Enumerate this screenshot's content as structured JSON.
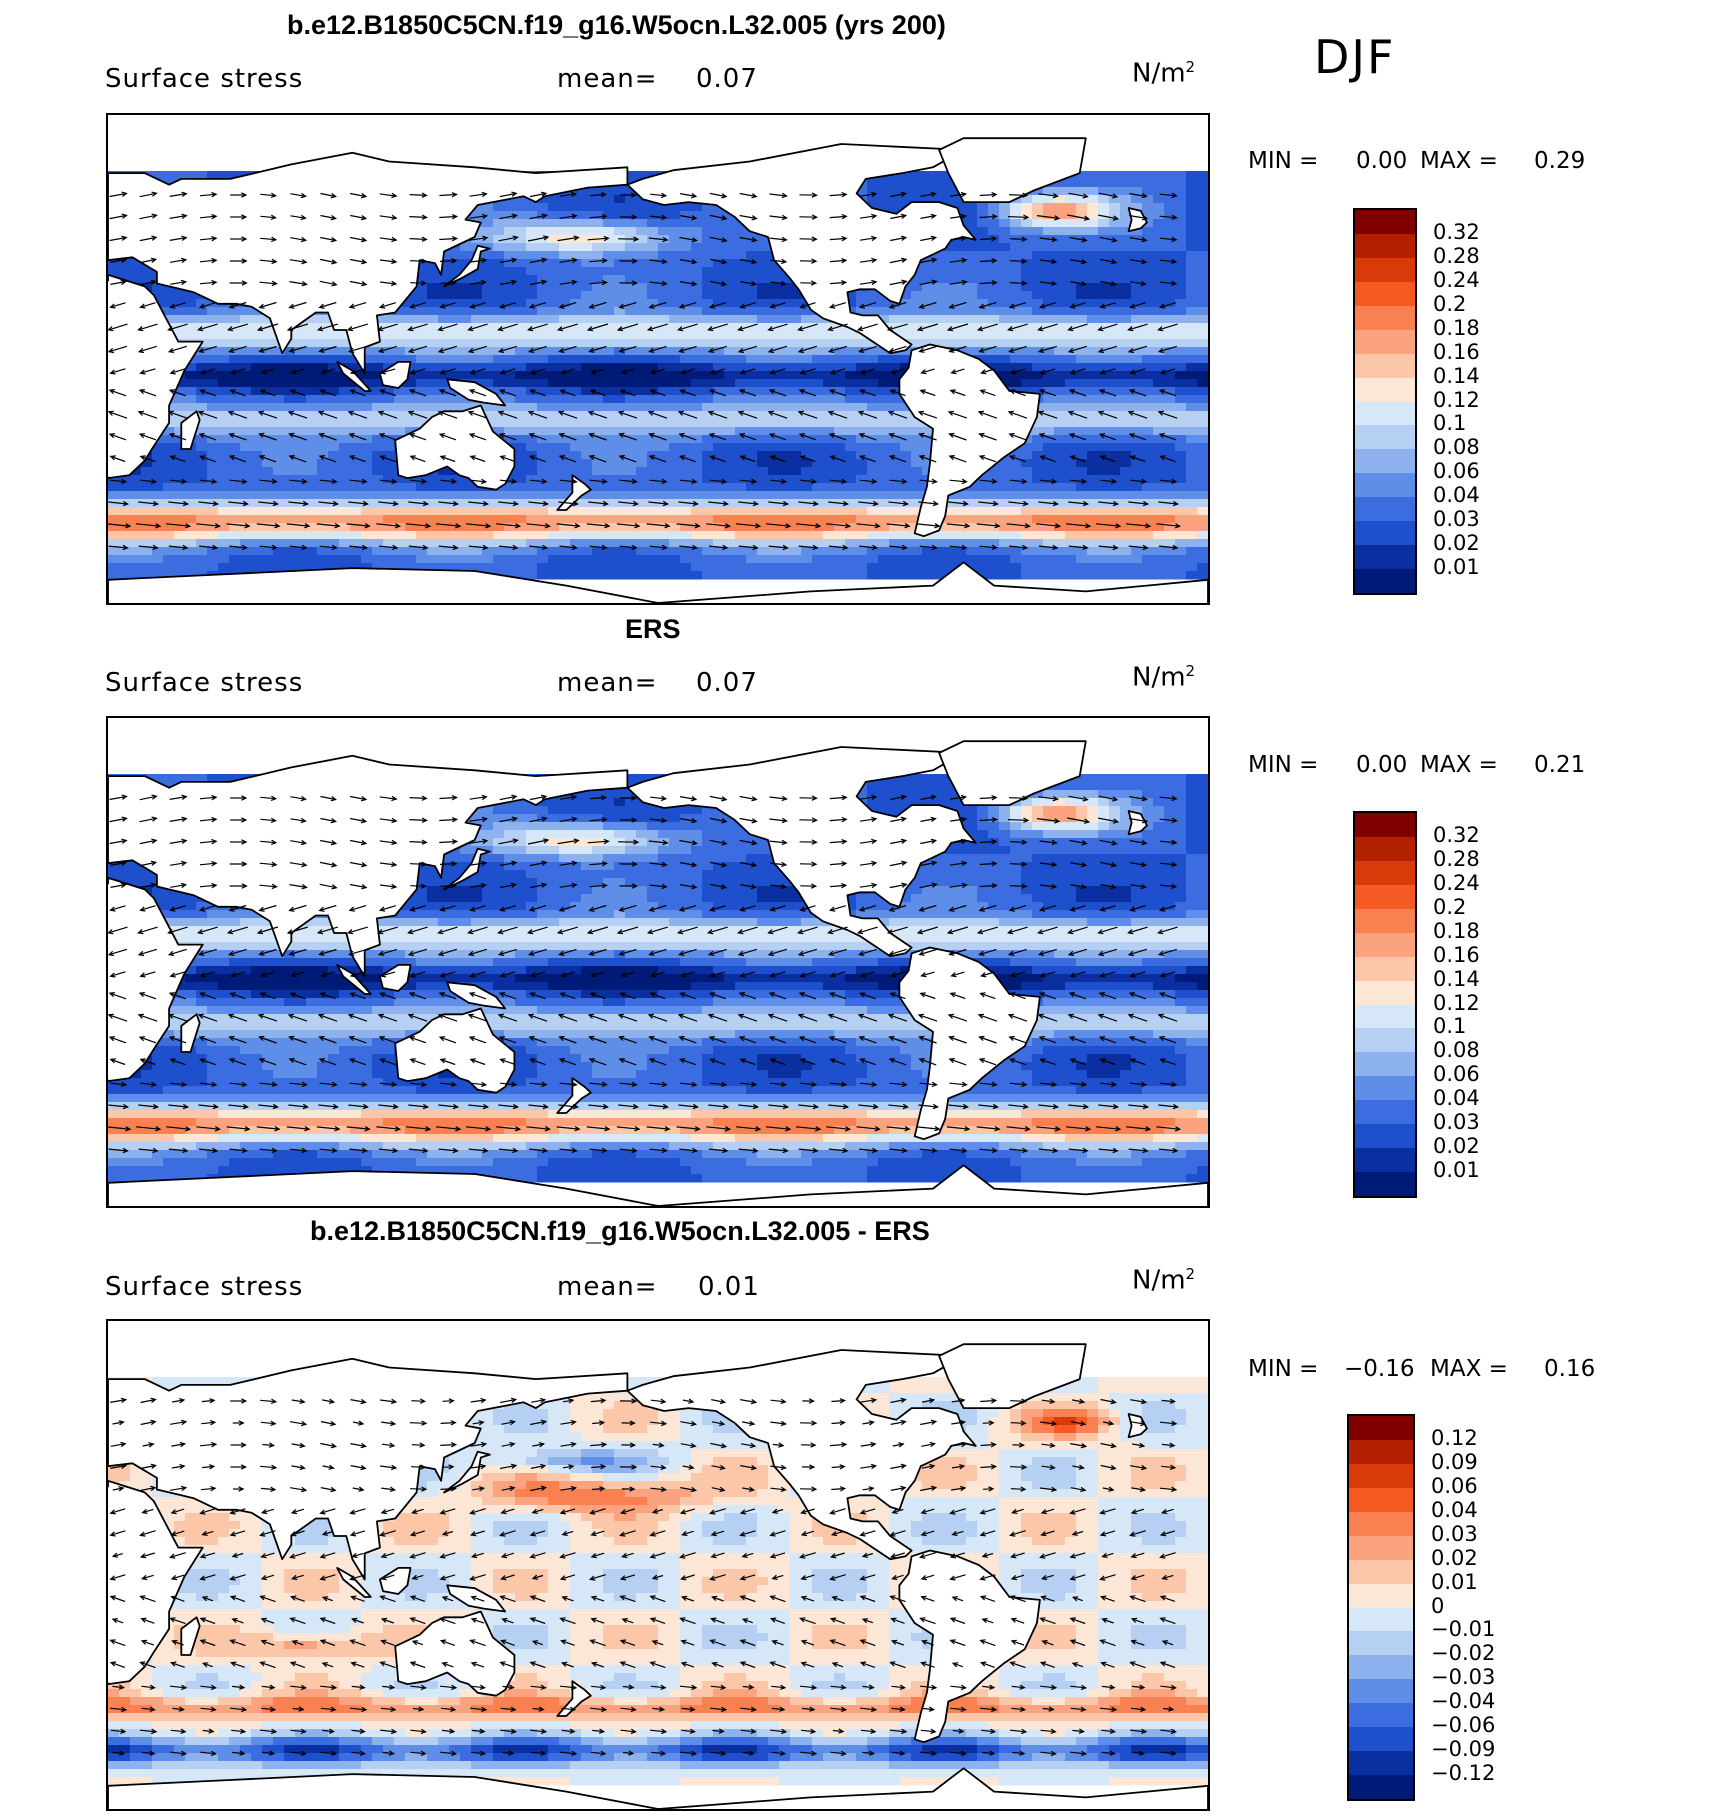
{
  "season": "DJF",
  "units_base": "N/m",
  "units_exp": "2",
  "panels": [
    {
      "title": "b.e12.B1850C5CN.f19_g16.W5ocn.L32.005 (yrs 200)",
      "variable": "Surface stress",
      "mean_label": "mean=",
      "mean_value": "0.07",
      "min_label": "MIN =",
      "min_value": "0.00",
      "max_label": "MAX =",
      "max_value": "0.29",
      "scale": "abs",
      "levels": [
        "0.32",
        "0.28",
        "0.24",
        "0.2",
        "0.18",
        "0.16",
        "0.14",
        "0.12",
        "0.1",
        "0.08",
        "0.06",
        "0.04",
        "0.03",
        "0.02",
        "0.01"
      ]
    },
    {
      "title": "ERS",
      "variable": "Surface stress",
      "mean_label": "mean=",
      "mean_value": "0.07",
      "min_label": "MIN =",
      "min_value": "0.00",
      "max_label": "MAX =",
      "max_value": "0.21",
      "scale": "abs",
      "levels": [
        "0.32",
        "0.28",
        "0.24",
        "0.2",
        "0.18",
        "0.16",
        "0.14",
        "0.12",
        "0.1",
        "0.08",
        "0.06",
        "0.04",
        "0.03",
        "0.02",
        "0.01"
      ]
    },
    {
      "title": "b.e12.B1850C5CN.f19_g16.W5ocn.L32.005 - ERS",
      "variable": "Surface stress",
      "mean_label": "mean=",
      "mean_value": "0.01",
      "min_label": "MIN =",
      "min_value": "−0.16",
      "max_label": "MAX =",
      "max_value": "0.16",
      "scale": "diff",
      "levels": [
        "0.12",
        "0.09",
        "0.06",
        "0.04",
        "0.03",
        "0.02",
        "0.01",
        "0",
        "−0.01",
        "−0.02",
        "−0.03",
        "−0.04",
        "−0.06",
        "−0.09",
        "−0.12"
      ]
    }
  ],
  "colors": {
    "abs": [
      "#800000",
      "#b22000",
      "#d93a0a",
      "#f45a22",
      "#f98050",
      "#fba37f",
      "#fcc6a9",
      "#fce6d6",
      "#d6e8f8",
      "#b5d0f3",
      "#8db2ee",
      "#5f8ee8",
      "#3c6de0",
      "#1e4fcc",
      "#0a2fa0",
      "#001a78"
    ],
    "diff": [
      "#800000",
      "#b22000",
      "#d93a0a",
      "#f45a22",
      "#f98050",
      "#fba37f",
      "#fcc6a9",
      "#fce6d6",
      "#d6e8f8",
      "#b5d0f3",
      "#8db2ee",
      "#5f8ee8",
      "#3c6de0",
      "#1e4fcc",
      "#0a2fa0",
      "#001a78"
    ]
  }
}
